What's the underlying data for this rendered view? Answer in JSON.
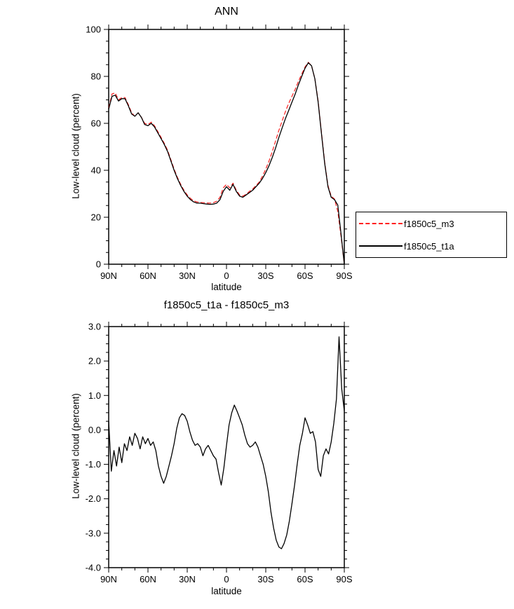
{
  "figure": {
    "background": "#ffffff",
    "text_color": "#000000"
  },
  "chart_data": [
    {
      "type": "line",
      "title": "ANN",
      "xlabel": "latitude",
      "ylabel": "Low-level cloud (percent)",
      "xlim": [
        90,
        -90
      ],
      "ylim": [
        0,
        100
      ],
      "grid": false,
      "xticks": {
        "values": [
          90,
          60,
          30,
          0,
          -30,
          -60,
          -90
        ],
        "labels": [
          "90N",
          "60N",
          "30N",
          "0",
          "30S",
          "60S",
          "90S"
        ],
        "minor": [
          80,
          70,
          50,
          40,
          20,
          10,
          -10,
          -20,
          -40,
          -50,
          -70,
          -80
        ]
      },
      "yticks": {
        "values": [
          0,
          20,
          40,
          60,
          80,
          100
        ],
        "labels": [
          "0",
          "20",
          "40",
          "60",
          "80",
          "100"
        ],
        "minor": [
          5,
          10,
          15,
          25,
          30,
          35,
          45,
          50,
          55,
          65,
          70,
          75,
          85,
          90,
          95
        ]
      },
      "legend": {
        "position": "outside-right-lower",
        "entries": [
          "f1850c5_m3",
          "f1850c5_t1a"
        ]
      },
      "series": [
        {
          "name": "f1850c5_m3",
          "color": "#ff2020",
          "dash": "6 3",
          "line_width": 1.2,
          "x": [
            90,
            87.5,
            85,
            82.5,
            80,
            77.5,
            75,
            72.5,
            70,
            67.5,
            65,
            62.5,
            60,
            57.5,
            55,
            52.5,
            50,
            47.5,
            45,
            42.5,
            40,
            37.5,
            35,
            32.5,
            30,
            27.5,
            25,
            22.5,
            20,
            17.5,
            15,
            12.5,
            10,
            7.5,
            5,
            2.5,
            0,
            -2.5,
            -5,
            -7.5,
            -10,
            -12.5,
            -15,
            -17.5,
            -20,
            -22.5,
            -25,
            -27.5,
            -30,
            -32.5,
            -35,
            -37.5,
            -40,
            -42.5,
            -45,
            -47.5,
            -50,
            -52.5,
            -55,
            -57.5,
            -60,
            -62.5,
            -65,
            -67.5,
            -70,
            -72.5,
            -75,
            -77.5,
            -80,
            -82.5,
            -85,
            -87.5,
            -90
          ],
          "y": [
            66.5,
            72.5,
            73,
            70,
            71,
            71,
            68,
            64.5,
            63,
            64.5,
            62.5,
            60,
            59.5,
            60.5,
            59,
            56.5,
            54,
            51.5,
            48.5,
            44.5,
            40.5,
            37,
            34,
            31.5,
            29.5,
            28,
            27,
            26.5,
            26.3,
            26.2,
            26.1,
            26,
            26.2,
            26.8,
            28.5,
            32.5,
            34,
            32.5,
            34.5,
            31.5,
            29.5,
            29,
            29.8,
            31,
            32,
            33.5,
            35,
            37.5,
            40.5,
            44,
            48,
            52.5,
            57,
            61,
            65,
            68.5,
            71.5,
            74.5,
            78,
            81,
            84,
            86,
            84.5,
            79,
            69.5,
            56.5,
            43.5,
            33.5,
            29,
            27.8,
            22.5,
            12,
            0
          ]
        },
        {
          "name": "f1850c5_t1a",
          "color": "#000000",
          "dash": "",
          "line_width": 1.3,
          "x": [
            90,
            87.5,
            85,
            82.5,
            80,
            77.5,
            75,
            72.5,
            70,
            67.5,
            65,
            62.5,
            60,
            57.5,
            55,
            52.5,
            50,
            47.5,
            45,
            42.5,
            40,
            37.5,
            35,
            32.5,
            30,
            27.5,
            25,
            22.5,
            20,
            17.5,
            15,
            12.5,
            10,
            7.5,
            5,
            2.5,
            0,
            -2.5,
            -5,
            -7.5,
            -10,
            -12.5,
            -15,
            -17.5,
            -20,
            -22.5,
            -25,
            -27.5,
            -30,
            -32.5,
            -35,
            -37.5,
            -40,
            -42.5,
            -45,
            -47.5,
            -50,
            -52.5,
            -55,
            -57.5,
            -60,
            -62.5,
            -65,
            -67.5,
            -70,
            -72.5,
            -75,
            -77.5,
            -80,
            -82.5,
            -85,
            -87.5,
            -90
          ],
          "y": [
            66,
            71.5,
            72,
            69.5,
            70.5,
            70.5,
            67.5,
            64,
            63,
            64.5,
            62.5,
            59.5,
            59,
            60,
            58.5,
            56,
            53.5,
            51,
            48,
            44,
            40,
            36.5,
            33.5,
            31,
            29,
            27.5,
            26.5,
            26,
            26,
            25.8,
            25.6,
            25.5,
            25.6,
            26,
            27.5,
            31,
            33,
            31.5,
            34,
            31,
            29,
            28.5,
            29.5,
            30.5,
            31.5,
            33,
            34.5,
            36.5,
            39,
            42,
            45.5,
            49.5,
            54,
            58,
            62,
            65.5,
            69,
            72.5,
            76.5,
            80,
            83.5,
            85.8,
            84.5,
            79,
            69,
            56,
            43,
            33,
            28.5,
            27.5,
            25.2,
            13,
            0
          ]
        }
      ]
    },
    {
      "type": "line",
      "title": "f1850c5_t1a - f1850c5_m3",
      "xlabel": "latitude",
      "ylabel": "Low-level cloud (percent)",
      "xlim": [
        90,
        -90
      ],
      "ylim": [
        -4.0,
        3.0
      ],
      "grid": false,
      "xticks": {
        "values": [
          90,
          60,
          30,
          0,
          -30,
          -60,
          -90
        ],
        "labels": [
          "90N",
          "60N",
          "30N",
          "0",
          "30S",
          "60S",
          "90S"
        ],
        "minor": [
          80,
          70,
          50,
          40,
          20,
          10,
          -10,
          -20,
          -40,
          -50,
          -70,
          -80
        ]
      },
      "yticks": {
        "values": [
          3.0,
          2.0,
          1.0,
          0.0,
          -1.0,
          -2.0,
          -3.0,
          -4.0
        ],
        "labels": [
          "3.0",
          "2.0",
          "1.0",
          "0.0",
          "-1.0",
          "-2.0",
          "-3.0",
          "-4.0"
        ],
        "minor": [
          -3.75,
          -3.5,
          -3.25,
          -2.75,
          -2.5,
          -2.25,
          -1.75,
          -1.5,
          -1.25,
          -0.75,
          -0.5,
          -0.25,
          0.25,
          0.5,
          0.75,
          1.25,
          1.5,
          1.75,
          2.25,
          2.5,
          2.75
        ]
      },
      "series": [
        {
          "name": "f1850c5_t1a - f1850c5_m3",
          "color": "#000000",
          "dash": "",
          "line_width": 1.3,
          "x": [
            90,
            88,
            86,
            84,
            82,
            80,
            78,
            76,
            74,
            72,
            70,
            68,
            66,
            64,
            62,
            60,
            58,
            56,
            54,
            52,
            50,
            48,
            46,
            44,
            42,
            40,
            38,
            36,
            34,
            32,
            30,
            28,
            26,
            24,
            22,
            20,
            18,
            16,
            14,
            12,
            10,
            8,
            6,
            4,
            2,
            0,
            -2,
            -4,
            -6,
            -8,
            -10,
            -12,
            -14,
            -16,
            -18,
            -20,
            -22,
            -24,
            -26,
            -28,
            -30,
            -32,
            -34,
            -36,
            -38,
            -40,
            -42,
            -44,
            -46,
            -48,
            -50,
            -52,
            -54,
            -56,
            -58,
            -60,
            -62,
            -64,
            -66,
            -68,
            -70,
            -72,
            -74,
            -76,
            -78,
            -80,
            -82,
            -84,
            -86,
            -88,
            -90
          ],
          "y": [
            0.25,
            -1.2,
            -0.6,
            -1.05,
            -0.5,
            -0.95,
            -0.4,
            -0.6,
            -0.2,
            -0.45,
            -0.1,
            -0.25,
            -0.55,
            -0.2,
            -0.4,
            -0.25,
            -0.45,
            -0.35,
            -0.6,
            -1.05,
            -1.35,
            -1.55,
            -1.35,
            -1.05,
            -0.75,
            -0.4,
            0.05,
            0.35,
            0.47,
            0.42,
            0.25,
            -0.05,
            -0.3,
            -0.45,
            -0.4,
            -0.5,
            -0.75,
            -0.55,
            -0.45,
            -0.6,
            -0.75,
            -0.85,
            -1.25,
            -1.6,
            -1.1,
            -0.45,
            0.15,
            0.5,
            0.72,
            0.55,
            0.35,
            0.15,
            -0.15,
            -0.4,
            -0.5,
            -0.45,
            -0.35,
            -0.5,
            -0.75,
            -1.0,
            -1.35,
            -1.8,
            -2.4,
            -2.85,
            -3.2,
            -3.4,
            -3.45,
            -3.3,
            -3.05,
            -2.65,
            -2.15,
            -1.6,
            -1.0,
            -0.45,
            -0.1,
            0.35,
            0.15,
            -0.1,
            -0.05,
            -0.35,
            -1.15,
            -1.35,
            -0.75,
            -0.55,
            -0.7,
            -0.35,
            0.2,
            0.9,
            2.7,
            1.2,
            0.55
          ]
        }
      ]
    }
  ]
}
